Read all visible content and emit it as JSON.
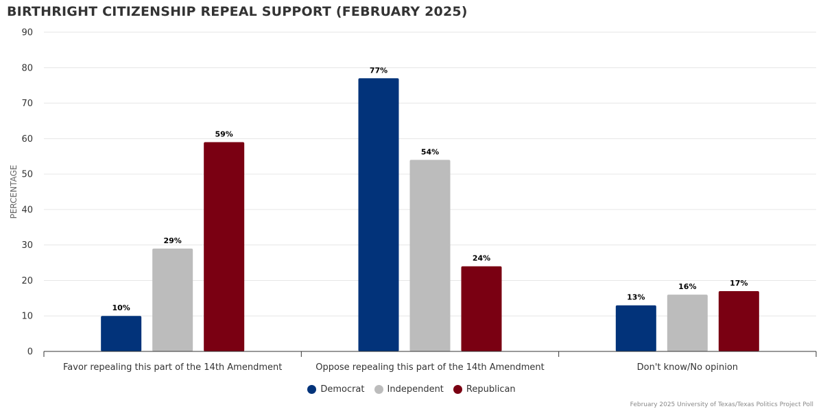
{
  "colors": {
    "democrat": "#02337a",
    "independent": "#bcbcbc",
    "republican": "#7a0012",
    "grid": "#e6e6e6",
    "axis": "#333333"
  },
  "chart_data": {
    "type": "bar",
    "title": "BIRTHRIGHT CITIZENSHIP REPEAL SUPPORT (FEBRUARY 2025)",
    "xlabel": "",
    "ylabel": "PERCENTAGE",
    "ylim": [
      0,
      90
    ],
    "yticks": [
      0,
      10,
      20,
      30,
      40,
      50,
      60,
      70,
      80,
      90
    ],
    "grid": true,
    "legend_position": "bottom-center",
    "categories": [
      "Favor repealing this part of the 14th Amendment",
      "Oppose repealing this part of the 14th Amendment",
      "Don't know/No opinion"
    ],
    "series": [
      {
        "name": "Democrat",
        "color_key": "democrat",
        "values": [
          10,
          77,
          13
        ],
        "labels": [
          "10%",
          "77%",
          "13%"
        ]
      },
      {
        "name": "Independent",
        "color_key": "independent",
        "values": [
          29,
          54,
          16
        ],
        "labels": [
          "29%",
          "54%",
          "16%"
        ]
      },
      {
        "name": "Republican",
        "color_key": "republican",
        "values": [
          59,
          24,
          17
        ],
        "labels": [
          "59%",
          "24%",
          "17%"
        ]
      }
    ],
    "source": "February 2025 University of Texas/Texas Politics Project Poll"
  }
}
